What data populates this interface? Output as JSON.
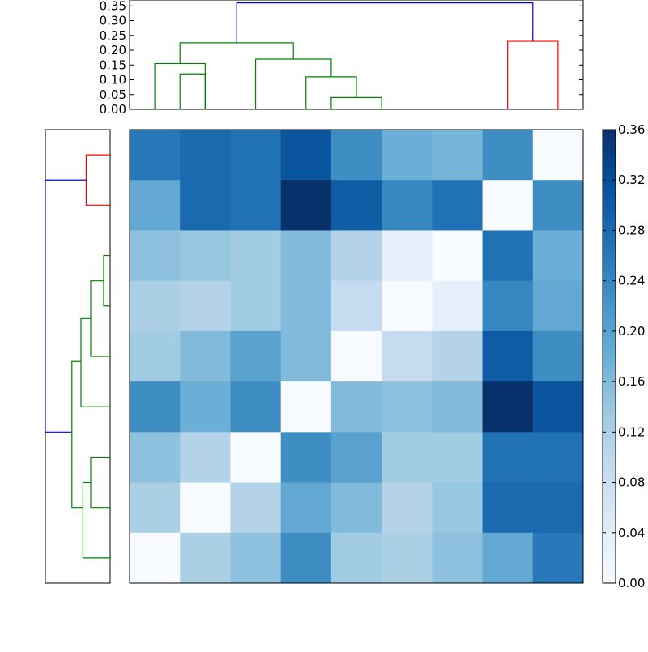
{
  "chart_data": [
    {
      "type": "dendrogram",
      "orientation": "top",
      "ylim": [
        0,
        0.37
      ],
      "yticks": [
        0.0,
        0.05,
        0.1,
        0.15,
        0.2,
        0.25,
        0.3,
        0.35
      ],
      "ytick_labels": [
        "0.00",
        "0.05",
        "0.10",
        "0.15",
        "0.20",
        "0.25",
        "0.30",
        "0.35"
      ],
      "leaf_count": 9,
      "links": [
        {
          "left": 0.5,
          "right": 1.5,
          "height": 0.155,
          "left_base": 0,
          "right_base": 0,
          "color": "#008000"
        },
        {
          "left": 1.0,
          "right": 3.25,
          "height": 0.225,
          "left_base": 0.155,
          "right_base": 0.17,
          "color": "#008000"
        },
        {
          "left": 2.5,
          "right": 4.0,
          "height": 0.17,
          "left_base": 0,
          "right_base": 0.11,
          "color": "#008000"
        },
        {
          "left": 3.5,
          "right": 4.5,
          "height": 0.11,
          "left_base": 0,
          "right_base": 0.04,
          "color": "#008000"
        },
        {
          "left": 4.0,
          "right": 5.0,
          "height": 0.04,
          "left_base": 0,
          "right_base": 0,
          "color": "#008000"
        },
        {
          "left": 1.0,
          "right": 1.5,
          "height": 0.12,
          "left_base": 0,
          "right_base": 0,
          "color": "#008000"
        },
        {
          "left": 7.5,
          "right": 8.5,
          "height": 0.23,
          "left_base": 0,
          "right_base": 0,
          "color": "#ff0000"
        },
        {
          "left": 2.125,
          "right": 8.0,
          "height": 0.36,
          "left_base": 0.225,
          "right_base": 0.23,
          "color": "#0000ff"
        }
      ]
    },
    {
      "type": "dendrogram",
      "orientation": "left",
      "leaf_count": 9,
      "links": [
        {
          "top": 0.5,
          "bottom": 1.5,
          "depth": 0.63,
          "top_base": 1.0,
          "bottom_base": 1.0,
          "color": "#ff0000"
        },
        {
          "top": 1.0,
          "bottom": 6.0,
          "depth": 0.0,
          "top_base": 0.63,
          "bottom_base": 0.41,
          "color": "#0000ff"
        },
        {
          "top": 2.5,
          "bottom": 3.5,
          "depth": 0.9,
          "top_base": 1.0,
          "bottom_base": 1.0,
          "color": "#008000"
        },
        {
          "top": 3.0,
          "bottom": 4.5,
          "depth": 0.7,
          "top_base": 0.9,
          "bottom_base": 1.0,
          "color": "#008000"
        },
        {
          "top": 3.75,
          "bottom": 5.5,
          "depth": 0.55,
          "top_base": 0.7,
          "bottom_base": 1.0,
          "color": "#008000"
        },
        {
          "top": 4.6,
          "bottom": 7.5,
          "depth": 0.41,
          "top_base": 0.55,
          "bottom_base": 0.58,
          "color": "#008000"
        },
        {
          "top": 6.5,
          "bottom": 7.5,
          "depth": 0.7,
          "top_base": 1.0,
          "bottom_base": 1.0,
          "color": "#008000"
        },
        {
          "top": 7.0,
          "bottom": 8.5,
          "depth": 0.58,
          "top_base": 0.7,
          "bottom_base": 1.0,
          "color": "#008000"
        }
      ]
    },
    {
      "type": "heatmap",
      "rows": 9,
      "cols": 9,
      "colormap": "Blues",
      "vmin": 0.0,
      "vmax": 0.36,
      "values": [
        [
          0.26,
          0.28,
          0.27,
          0.31,
          0.23,
          0.18,
          0.17,
          0.23,
          0.0
        ],
        [
          0.19,
          0.28,
          0.27,
          0.36,
          0.3,
          0.24,
          0.27,
          0.0,
          0.23
        ],
        [
          0.15,
          0.14,
          0.13,
          0.16,
          0.11,
          0.03,
          0.0,
          0.27,
          0.18
        ],
        [
          0.12,
          0.11,
          0.13,
          0.16,
          0.09,
          0.0,
          0.03,
          0.24,
          0.19
        ],
        [
          0.13,
          0.16,
          0.2,
          0.16,
          0.0,
          0.09,
          0.11,
          0.3,
          0.23
        ],
        [
          0.23,
          0.18,
          0.23,
          0.0,
          0.16,
          0.15,
          0.16,
          0.36,
          0.31
        ],
        [
          0.15,
          0.11,
          0.0,
          0.23,
          0.2,
          0.13,
          0.13,
          0.27,
          0.27
        ],
        [
          0.12,
          0.0,
          0.11,
          0.19,
          0.16,
          0.11,
          0.14,
          0.28,
          0.28
        ],
        [
          0.0,
          0.12,
          0.15,
          0.23,
          0.13,
          0.12,
          0.15,
          0.19,
          0.26
        ]
      ]
    },
    {
      "type": "colorbar",
      "colormap": "Blues",
      "range": [
        0.0,
        0.36
      ],
      "ticks": [
        0.0,
        0.04,
        0.08,
        0.12,
        0.16,
        0.2,
        0.24,
        0.28,
        0.32,
        0.36
      ],
      "tick_labels": [
        "0.00",
        "0.04",
        "0.08",
        "0.12",
        "0.16",
        "0.20",
        "0.24",
        "0.28",
        "0.32",
        "0.36"
      ]
    }
  ]
}
